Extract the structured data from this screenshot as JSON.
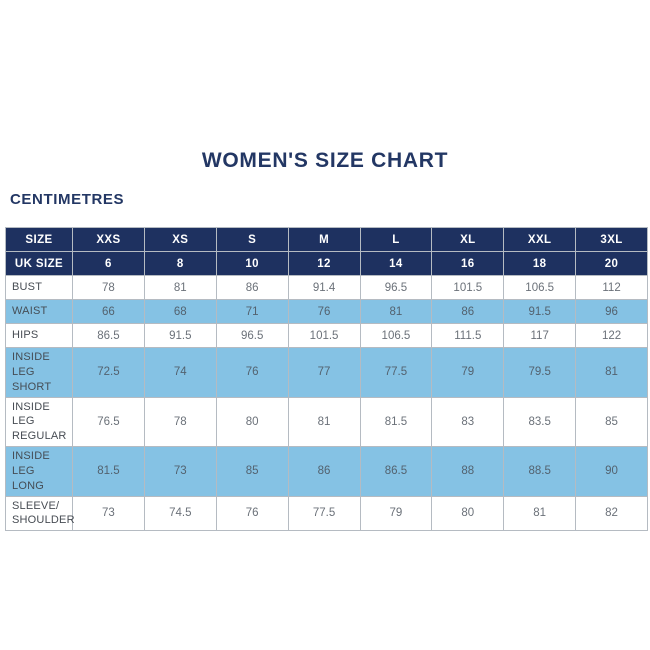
{
  "page": {
    "title": "WOMEN'S SIZE CHART",
    "unit_label": "CENTIMETRES"
  },
  "colors": {
    "header_navy": "#1e3160",
    "shaded_blue": "#85c2e4",
    "heading_text": "#233764",
    "cell_border": "#b5bbc2",
    "label_text": "#474c53",
    "value_text": "#6b7179"
  },
  "chart_data": {
    "type": "table",
    "title": "WOMEN'S SIZE CHART",
    "unit": "CENTIMETRES",
    "columns": [
      "SIZE",
      "XXS",
      "XS",
      "S",
      "M",
      "L",
      "XL",
      "XXL",
      "3XL"
    ],
    "uk_size_row": {
      "label": "UK SIZE",
      "values": [
        "6",
        "8",
        "10",
        "12",
        "14",
        "16",
        "18",
        "20"
      ]
    },
    "rows": [
      {
        "label": "BUST",
        "shaded": false,
        "values": [
          "78",
          "81",
          "86",
          "91.4",
          "96.5",
          "101.5",
          "106.5",
          "112"
        ]
      },
      {
        "label": "WAIST",
        "shaded": true,
        "values": [
          "66",
          "68",
          "71",
          "76",
          "81",
          "86",
          "91.5",
          "96"
        ]
      },
      {
        "label": "HIPS",
        "shaded": false,
        "values": [
          "86.5",
          "91.5",
          "96.5",
          "101.5",
          "106.5",
          "111.5",
          "117",
          "122"
        ]
      },
      {
        "label": "INSIDE LEG SHORT",
        "shaded": true,
        "values": [
          "72.5",
          "74",
          "76",
          "77",
          "77.5",
          "79",
          "79.5",
          "81"
        ]
      },
      {
        "label": "INSIDE LEG REGULAR",
        "shaded": false,
        "values": [
          "76.5",
          "78",
          "80",
          "81",
          "81.5",
          "83",
          "83.5",
          "85"
        ]
      },
      {
        "label": "INSIDE LEG LONG",
        "shaded": true,
        "values": [
          "81.5",
          "73",
          "85",
          "86",
          "86.5",
          "88",
          "88.5",
          "90"
        ]
      },
      {
        "label": "SLEEVE/ SHOULDER",
        "shaded": false,
        "values": [
          "73",
          "74.5",
          "76",
          "77.5",
          "79",
          "80",
          "81",
          "82"
        ]
      }
    ]
  }
}
